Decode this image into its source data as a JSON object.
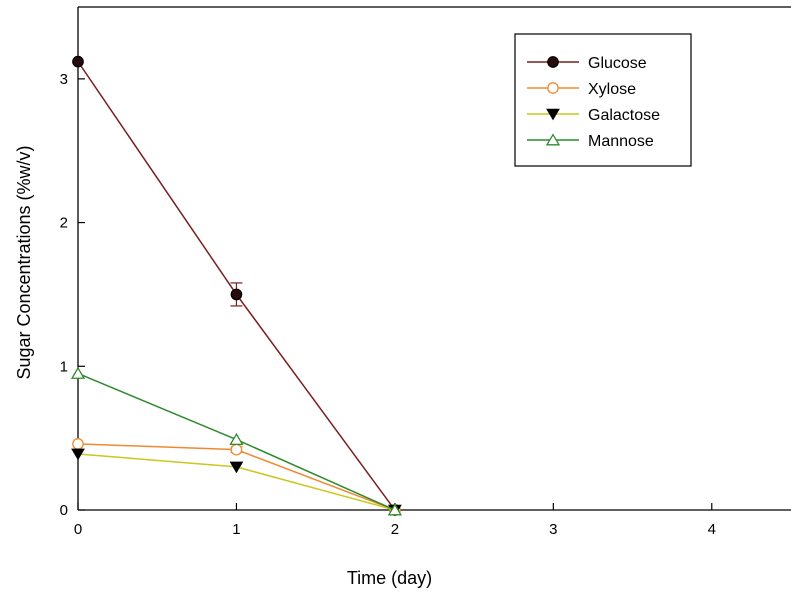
{
  "chart_data": {
    "type": "line",
    "title": "",
    "xlabel": "Time (day)",
    "ylabel": "Sugar Concentrations (%w/v)",
    "xlim": [
      0,
      4.5
    ],
    "ylim": [
      0,
      3.5
    ],
    "xticks": [
      0,
      1,
      2,
      3,
      4
    ],
    "yticks": [
      0,
      1,
      2,
      3
    ],
    "grid": false,
    "legend_position": "top-right",
    "series": [
      {
        "name": "Glucose",
        "color": "#7a1f1f",
        "marker": "circle-filled",
        "marker_fill": "#2a0a0a",
        "x": [
          0,
          1,
          2
        ],
        "y": [
          3.12,
          1.5,
          0.0
        ],
        "error": [
          0.0,
          0.08,
          0.0
        ]
      },
      {
        "name": "Xylose",
        "color": "#f08a30",
        "marker": "circle-open",
        "marker_fill": "#ffffff",
        "x": [
          0,
          1,
          2
        ],
        "y": [
          0.46,
          0.42,
          0.0
        ],
        "error": [
          0.0,
          0.02,
          0.0
        ]
      },
      {
        "name": "Galactose",
        "color": "#c8c81e",
        "marker": "triangle-down-filled",
        "marker_fill": "#000000",
        "x": [
          0,
          1,
          2
        ],
        "y": [
          0.39,
          0.3,
          0.0
        ],
        "error": [
          0.0,
          0.0,
          0.0
        ]
      },
      {
        "name": "Mannose",
        "color": "#2e8b2e",
        "marker": "triangle-up-open",
        "marker_fill": "#ffffff",
        "x": [
          0,
          1,
          2
        ],
        "y": [
          0.95,
          0.49,
          0.0
        ],
        "error": [
          0.0,
          0.0,
          0.0
        ]
      }
    ]
  }
}
